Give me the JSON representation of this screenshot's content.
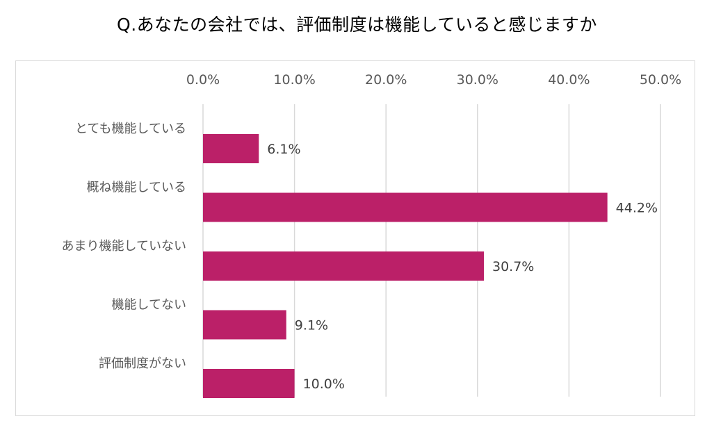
{
  "chart_data": {
    "type": "bar",
    "orientation": "horizontal",
    "title": "Q.あなたの会社では、評価制度は機能していると感じますか",
    "categories": [
      "とても機能している",
      "概ね機能している",
      "あまり機能していない",
      "機能してない",
      "評価制度がない"
    ],
    "values": [
      6.1,
      44.2,
      30.7,
      9.1,
      10.0
    ],
    "data_labels": [
      "6.1%",
      "44.2%",
      "30.7%",
      "9.1%",
      "10.0%"
    ],
    "x_ticks": [
      0,
      10,
      20,
      30,
      40,
      50
    ],
    "x_tick_labels": [
      "0.0%",
      "10.0%",
      "20.0%",
      "30.0%",
      "40.0%",
      "50.0%"
    ],
    "xlim": [
      0,
      50
    ],
    "xaxis_position": "top",
    "grid": true,
    "legend": "none",
    "bar_color": "#bb2068",
    "grid_color": "#d9d9d9"
  }
}
